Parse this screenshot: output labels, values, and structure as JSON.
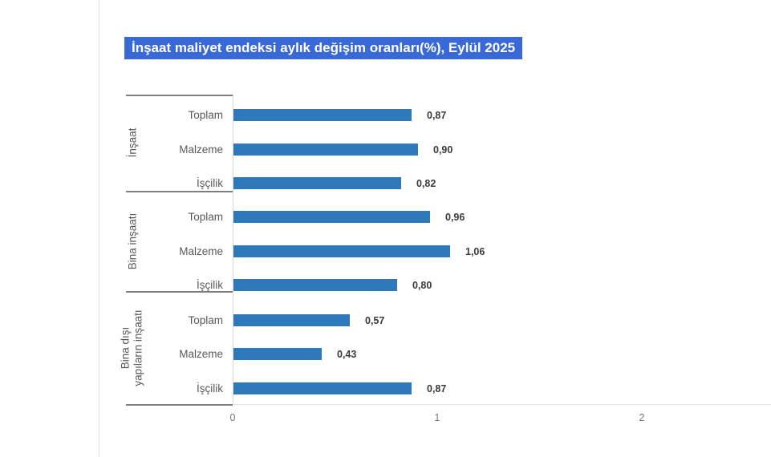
{
  "title": {
    "text": "İnşaat maliyet endeksi aylık değişim oranları(%), Eylül 2025",
    "background": "#3969d6",
    "color": "#ffffff"
  },
  "colors": {
    "bar": "#2e79b9",
    "separator_dark": "#7f7f7f",
    "axis_line_light": "#e2e2e2",
    "category_axis_line": "#d8d8d8",
    "group_label_text": "#595959",
    "category_label_text": "#595959",
    "value_label_text": "#3a3a3a",
    "tick_label_text": "#757575"
  },
  "chart_data": {
    "type": "bar",
    "orientation": "horizontal",
    "title": "İnşaat maliyet endeksi aylık değişim oranları(%), Eylül 2025",
    "xlabel": "",
    "ylabel": "",
    "xlim": [
      0,
      2.63
    ],
    "x_ticks": [
      0,
      1,
      2
    ],
    "grid": false,
    "legend": false,
    "bar_color": "#2e79b9",
    "value_format": "comma-decimal",
    "groups": [
      {
        "label": "İnşaat",
        "label_lines": [
          "İnşaat"
        ],
        "rows": [
          {
            "category": "Toplam",
            "value": 0.87,
            "value_label": "0,87"
          },
          {
            "category": "Malzeme",
            "value": 0.9,
            "value_label": "0,90"
          },
          {
            "category": "İşçilik",
            "value": 0.82,
            "value_label": "0,82"
          }
        ]
      },
      {
        "label": "Bina inşaatı",
        "label_lines": [
          "Bina inşaatı"
        ],
        "rows": [
          {
            "category": "Toplam",
            "value": 0.96,
            "value_label": "0,96"
          },
          {
            "category": "Malzeme",
            "value": 1.06,
            "value_label": "1,06"
          },
          {
            "category": "İşçilik",
            "value": 0.8,
            "value_label": "0,80"
          }
        ]
      },
      {
        "label": "Bina dışı yapıların inşaatı",
        "label_lines": [
          "Bina dışı",
          "yapıların inşaatı"
        ],
        "rows": [
          {
            "category": "Toplam",
            "value": 0.57,
            "value_label": "0,57"
          },
          {
            "category": "Malzeme",
            "value": 0.43,
            "value_label": "0,43"
          },
          {
            "category": "İşçilik",
            "value": 0.87,
            "value_label": "0,87"
          }
        ]
      }
    ]
  }
}
